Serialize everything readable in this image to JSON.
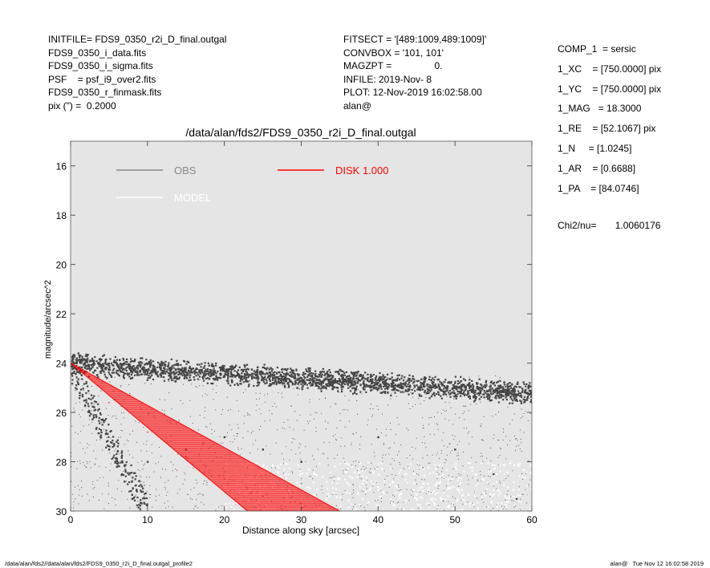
{
  "header": {
    "left": [
      "INITFILE= FDS9_0350_r2i_D_final.outgal",
      "FDS9_0350_i_data.fits",
      "FDS9_0350_i_sigma.fits",
      "PSF    = psf_i9_over2.fits",
      "FDS9_0350_r_finmask.fits",
      "pix (\") =  0.2000"
    ],
    "middle": [
      "FITSECT = '[489:1009,489:1009]'",
      "CONVBOX = '101, 101'",
      "MAGZPT =                0.",
      "INFILE: 2019-Nov- 8",
      "PLOT: 12-Nov-2019 16:02:58.00",
      "alan@"
    ]
  },
  "params": [
    "COMP_1  = sersic",
    "1_XC    = [750.0000] pix",
    "1_YC    = [750.0000] pix",
    "1_MAG   = 18.3000",
    "1_RE    = [52.1067] pix",
    "1_N     = [1.0245]",
    "1_AR    = [0.6688]",
    "1_PA    = [84.0746]"
  ],
  "chi2": "Chi2/nu=       1.0060176",
  "footer": {
    "left": "/data/alan/fds2//data/alan/fds2/FDS9_0350_r2i_D_final.outgal_profile2",
    "right": "alan@   Tue Nov 12 16:02:58 2019"
  },
  "chart_data": {
    "type": "scatter",
    "title": "/data/alan/fds2/FDS9_0350_r2i_D_final.outgal",
    "xlabel": "Distance along sky [arcsec]",
    "ylabel": "magnitude/arcsec^2",
    "xlim": [
      0,
      60
    ],
    "ylim": [
      30,
      15
    ],
    "y_inverted": true,
    "xticks": [
      0,
      10,
      20,
      30,
      40,
      50,
      60
    ],
    "yticks": [
      16,
      18,
      20,
      22,
      24,
      26,
      28,
      30
    ],
    "plot_background": "#e5e5e5",
    "legend": [
      {
        "name": "OBS",
        "color": "#888888"
      },
      {
        "name": "DISK  1.000",
        "color": "#ff0000"
      },
      {
        "name": "MODEL",
        "color": "#ffffff"
      }
    ],
    "series": [
      {
        "name": "OBS",
        "color": "#444444",
        "points": [
          [
            0.2,
            23.9
          ],
          [
            0.5,
            23.7
          ],
          [
            0.8,
            23.8
          ],
          [
            1,
            23.6
          ],
          [
            1.5,
            23.9
          ],
          [
            2,
            24.1
          ],
          [
            3,
            24.0
          ],
          [
            4,
            24.2
          ],
          [
            5,
            24.1
          ],
          [
            6,
            24.3
          ],
          [
            8,
            24.2
          ],
          [
            10,
            24.4
          ],
          [
            12,
            24.3
          ],
          [
            15,
            24.5
          ],
          [
            18,
            24.4
          ],
          [
            20,
            24.5
          ],
          [
            25,
            24.6
          ],
          [
            30,
            24.6
          ],
          [
            35,
            24.7
          ],
          [
            40,
            24.8
          ],
          [
            45,
            24.9
          ],
          [
            50,
            25.0
          ],
          [
            55,
            25.1
          ],
          [
            60,
            25.2
          ],
          [
            2,
            25.5
          ],
          [
            3,
            26.2
          ],
          [
            4,
            26.8
          ],
          [
            5,
            27.5
          ],
          [
            6,
            28.2
          ],
          [
            7,
            28.8
          ],
          [
            8,
            29.5
          ],
          [
            10,
            28.0
          ],
          [
            15,
            27.5
          ],
          [
            20,
            27.0
          ],
          [
            25,
            27.5
          ],
          [
            30,
            28.0
          ],
          [
            40,
            27.0
          ],
          [
            50,
            27.5
          ],
          [
            55,
            28.5
          ],
          [
            58,
            29.5
          ]
        ],
        "band": {
          "x": [
            0,
            60
          ],
          "mag_center": [
            24.0,
            25.2
          ],
          "mag_spread": 0.25
        },
        "scatter_tail": {
          "x": [
            0,
            60
          ],
          "mag_range": [
            24.5,
            30
          ]
        },
        "steep_tail": {
          "x": [
            0,
            10
          ],
          "mag_start": 24.2,
          "mag_end": 30
        }
      },
      {
        "name": "DISK  1.000",
        "color": "#ff0000",
        "points": [
          [
            0,
            24.0
          ],
          [
            5,
            25.6
          ],
          [
            10,
            26.8
          ],
          [
            15,
            27.8
          ],
          [
            20,
            28.7
          ],
          [
            25,
            29.4
          ],
          [
            30,
            29.7
          ],
          [
            35,
            30.0
          ]
        ],
        "upper_envelope": {
          "x": [
            0,
            23
          ],
          "mag": [
            24.0,
            30.0
          ]
        },
        "lower_envelope": {
          "x": [
            0,
            35
          ],
          "mag": [
            24.0,
            30.0
          ]
        }
      },
      {
        "name": "MODEL",
        "color": "#ffffff",
        "scatter_tail": {
          "x": [
            20,
            60
          ],
          "mag_range": [
            28,
            30
          ]
        }
      }
    ]
  }
}
